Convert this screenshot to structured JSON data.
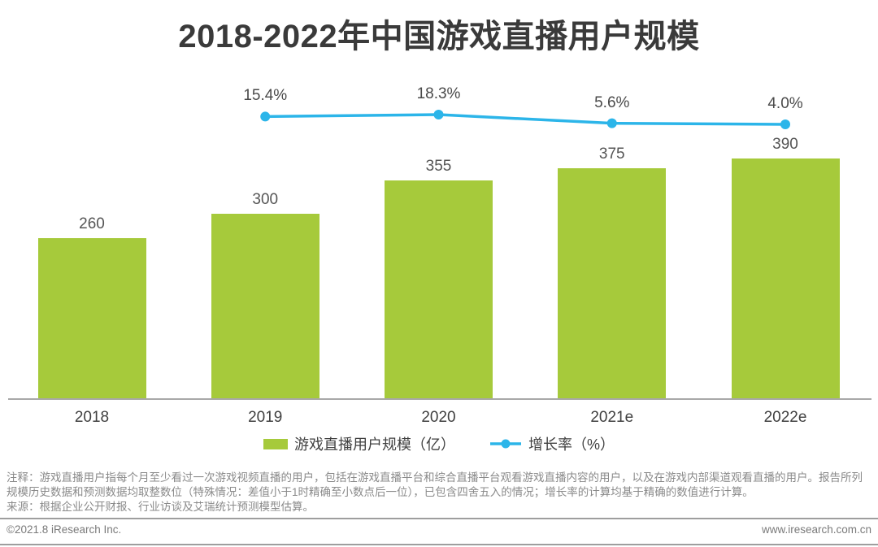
{
  "title": "2018-2022年中国游戏直播用户规模",
  "colors": {
    "bar_green": "#a6ca3b",
    "line_blue": "#2cb5e9",
    "axis_gray": "#a8a8a8",
    "divider_gray": "#9e9e9e"
  },
  "chart_data": {
    "type": "bar",
    "title": "2018-2022年中国游戏直播用户规模",
    "categories": [
      "2018",
      "2019",
      "2020",
      "2021e",
      "2022e"
    ],
    "series": [
      {
        "name": "游戏直播用户规模（亿）",
        "type": "bar",
        "values": [
          260,
          300,
          355,
          375,
          390
        ],
        "value_labels": [
          "260",
          "300",
          "355",
          "375",
          "390"
        ],
        "color": "#a6ca3b"
      },
      {
        "name": "增长率（%）",
        "type": "line",
        "values": [
          null,
          15.4,
          18.3,
          5.6,
          4.0
        ],
        "value_labels": [
          "",
          "15.4%",
          "18.3%",
          "5.6%",
          "4.0%"
        ],
        "color": "#2cb5e9"
      }
    ],
    "xlabel": "",
    "ylabel": "",
    "ylim": [
      0,
      420
    ],
    "grid": false,
    "legend_position": "bottom"
  },
  "legend": {
    "users_label": "游戏直播用户规模（亿）",
    "growth_label": "增长率（%）"
  },
  "notes": {
    "annotation": "注释：游戏直播用户指每个月至少看过一次游戏视频直播的用户，包括在游戏直播平台和综合直播平台观看游戏直播内容的用户，以及在游戏内部渠道观看直播的用户。报告所列规模历史数据和预测数据均取整数位（特殊情况：差值小于1时精确至小数点后一位），已包含四舍五入的情况；增长率的计算均基于精确的数值进行计算。",
    "source": "来源：根据企业公开财报、行业访谈及艾瑞统计预测模型估算。"
  },
  "footer": {
    "copyright": "©2021.8 iResearch Inc.",
    "website": "www.iresearch.com.cn"
  }
}
